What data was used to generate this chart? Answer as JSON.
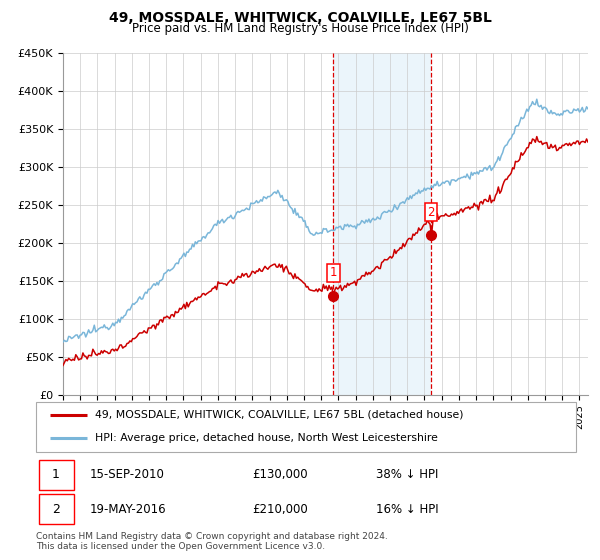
{
  "title": "49, MOSSDALE, WHITWICK, COALVILLE, LE67 5BL",
  "subtitle": "Price paid vs. HM Land Registry's House Price Index (HPI)",
  "legend_line1": "49, MOSSDALE, WHITWICK, COALVILLE, LE67 5BL (detached house)",
  "legend_line2": "HPI: Average price, detached house, North West Leicestershire",
  "transaction1_date": "15-SEP-2010",
  "transaction1_price": "£130,000",
  "transaction1_pct": "38% ↓ HPI",
  "transaction2_date": "19-MAY-2016",
  "transaction2_price": "£210,000",
  "transaction2_pct": "16% ↓ HPI",
  "footnote1": "Contains HM Land Registry data © Crown copyright and database right 2024.",
  "footnote2": "This data is licensed under the Open Government Licence v3.0.",
  "ylim": [
    0,
    450000
  ],
  "ytick_vals": [
    0,
    50000,
    100000,
    150000,
    200000,
    250000,
    300000,
    350000,
    400000,
    450000
  ],
  "ytick_labels": [
    "£0",
    "£50K",
    "£100K",
    "£150K",
    "£200K",
    "£250K",
    "£300K",
    "£350K",
    "£400K",
    "£450K"
  ],
  "xmin": 1995,
  "xmax": 2025.5,
  "hpi_color": "#7ab6d9",
  "price_color": "#cc0000",
  "shade_color": "#d4eaf7",
  "marker1_x": 2010.71,
  "marker2_x": 2016.38,
  "marker1_y": 130000,
  "marker2_y": 210000,
  "grid_color": "#cccccc",
  "seed": 12345
}
